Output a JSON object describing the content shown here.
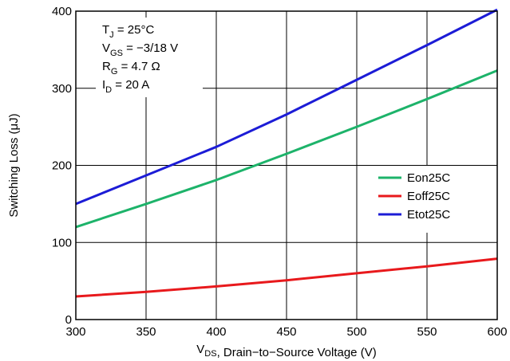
{
  "chart_data": {
    "type": "line",
    "xlabel": "V<sub>DS</sub>, Drain−to−Source Voltage (V)",
    "ylabel": "Switching Loss (μJ)",
    "xlim": [
      300,
      600
    ],
    "ylim": [
      0,
      400
    ],
    "x_ticks": [
      "300",
      "350",
      "400",
      "450",
      "500",
      "550",
      "600"
    ],
    "y_ticks": [
      "0",
      "100",
      "200",
      "300",
      "400"
    ],
    "grid": true,
    "legend_position": "right",
    "annotations": [
      {
        "main": "T",
        "sub": "J",
        "rest": " = 25°C"
      },
      {
        "main": "V",
        "sub": "GS",
        "rest": " = −3/18 V"
      },
      {
        "main": "R",
        "sub": "G",
        "rest": " = 4.7 Ω"
      },
      {
        "main": "I",
        "sub": "D",
        "rest": " = 20 A"
      }
    ],
    "series": [
      {
        "name": "Eon25C",
        "color": "#1db36a",
        "x": [
          300,
          350,
          400,
          450,
          500,
          550,
          600
        ],
        "y": [
          120,
          150,
          181,
          215,
          250,
          286,
          323
        ]
      },
      {
        "name": "Eoff25C",
        "color": "#e8191c",
        "x": [
          300,
          350,
          400,
          450,
          500,
          550,
          600
        ],
        "y": [
          30,
          36,
          43,
          51,
          60,
          69,
          79
        ]
      },
      {
        "name": "Etot25C",
        "color": "#1c1cd6",
        "x": [
          300,
          350,
          400,
          450,
          500,
          550,
          600
        ],
        "y": [
          150,
          187,
          224,
          266,
          311,
          356,
          402
        ]
      }
    ]
  }
}
